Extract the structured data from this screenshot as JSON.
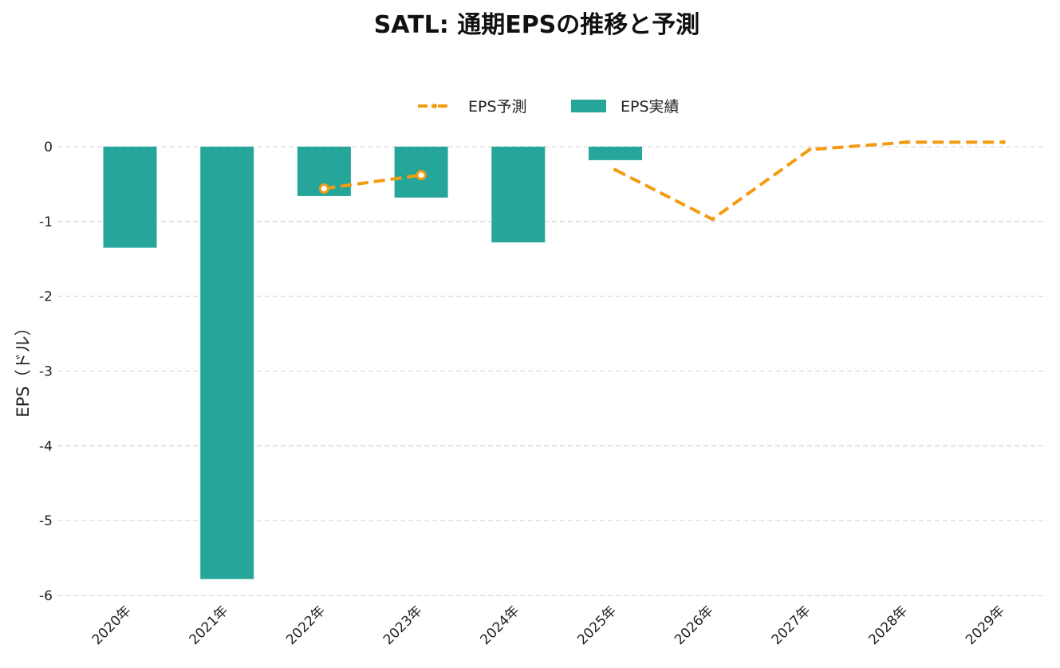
{
  "chart_data": {
    "type": "bar",
    "title": "SATL: 通期EPSの推移と予測",
    "xlabel": "",
    "ylabel": "EPS（ドル）",
    "categories": [
      "2020年",
      "2021年",
      "2022年",
      "2023年",
      "2024年",
      "2025年",
      "2026年",
      "2027年",
      "2028年",
      "2029年"
    ],
    "ylim": [
      -6,
      0
    ],
    "yticks": [
      0,
      -1,
      -2,
      -3,
      -4,
      -5,
      -6
    ],
    "grid": true,
    "legend_position": "top-center",
    "series": [
      {
        "name": "EPS予測",
        "type": "line",
        "color": "#f39c12",
        "style": "dashed",
        "segments": [
          [
            {
              "x": "2022年",
              "y": -0.56,
              "marker": true
            },
            {
              "x": "2023年",
              "y": -0.38,
              "marker": true
            }
          ],
          [
            {
              "x": "2025年",
              "y": -0.31
            },
            {
              "x": "2026年",
              "y": -0.97
            },
            {
              "x": "2027年",
              "y": -0.04
            },
            {
              "x": "2028年",
              "y": 0.06
            },
            {
              "x": "2029年",
              "y": 0.06
            }
          ]
        ]
      },
      {
        "name": "EPS実績",
        "type": "bar",
        "color": "#26a69a",
        "values": [
          -1.35,
          -5.78,
          -0.66,
          -0.68,
          -1.28,
          -0.18,
          null,
          null,
          null,
          null
        ]
      }
    ]
  }
}
